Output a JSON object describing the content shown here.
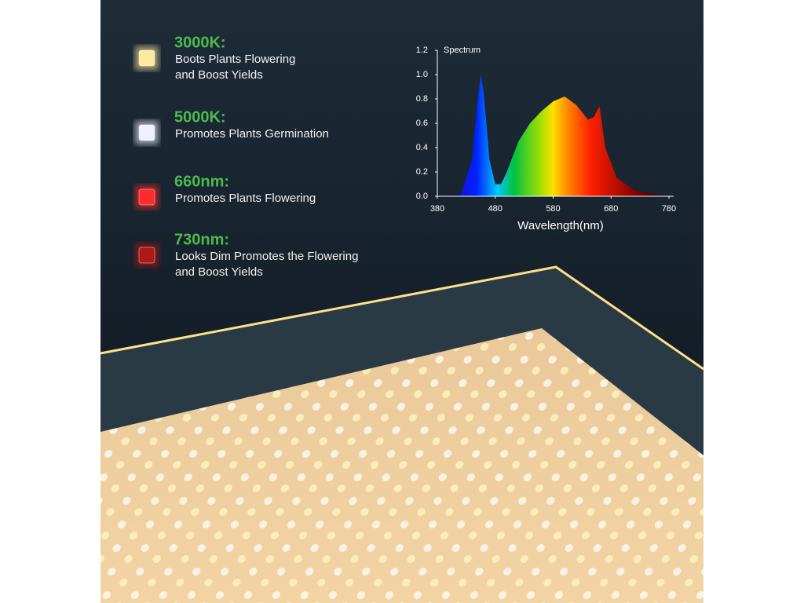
{
  "features": [
    {
      "title": "3000K:",
      "lines": [
        "Boots Plants Flowering",
        "and Boost Yields"
      ],
      "color": "#ffe9a0"
    },
    {
      "title": "5000K:",
      "lines": [
        "Promotes Plants Germination"
      ],
      "color": "#eef0ff"
    },
    {
      "title": "660nm:",
      "lines": [
        "Promotes Plants Flowering"
      ],
      "color": "#ff2a2a"
    },
    {
      "title": "730nm:",
      "lines": [
        "Looks Dim Promotes the Flowering",
        "and Boost Yields"
      ],
      "color": "#b01818"
    }
  ],
  "chart_data": {
    "type": "area",
    "title": "Spectrum",
    "xlabel": "Wavelength(nm)",
    "x": [
      380,
      420,
      440,
      450,
      455,
      460,
      470,
      480,
      490,
      500,
      520,
      540,
      560,
      580,
      600,
      620,
      640,
      650,
      660,
      670,
      690,
      720,
      760,
      780
    ],
    "values": [
      0,
      0.01,
      0.3,
      0.8,
      1.0,
      0.85,
      0.3,
      0.1,
      0.1,
      0.2,
      0.45,
      0.6,
      0.7,
      0.78,
      0.82,
      0.75,
      0.63,
      0.65,
      0.74,
      0.4,
      0.15,
      0.05,
      0.01,
      0
    ],
    "xlim": [
      380,
      780
    ],
    "xticks": [
      380,
      480,
      580,
      680,
      780
    ],
    "ylim": [
      0,
      1.2
    ],
    "yticks": [
      {
        "value": 0,
        "label": "0.0"
      },
      0.2,
      0.4,
      0.6,
      0.8,
      {
        "value": 1,
        "label": "1.0"
      },
      1.2
    ]
  }
}
